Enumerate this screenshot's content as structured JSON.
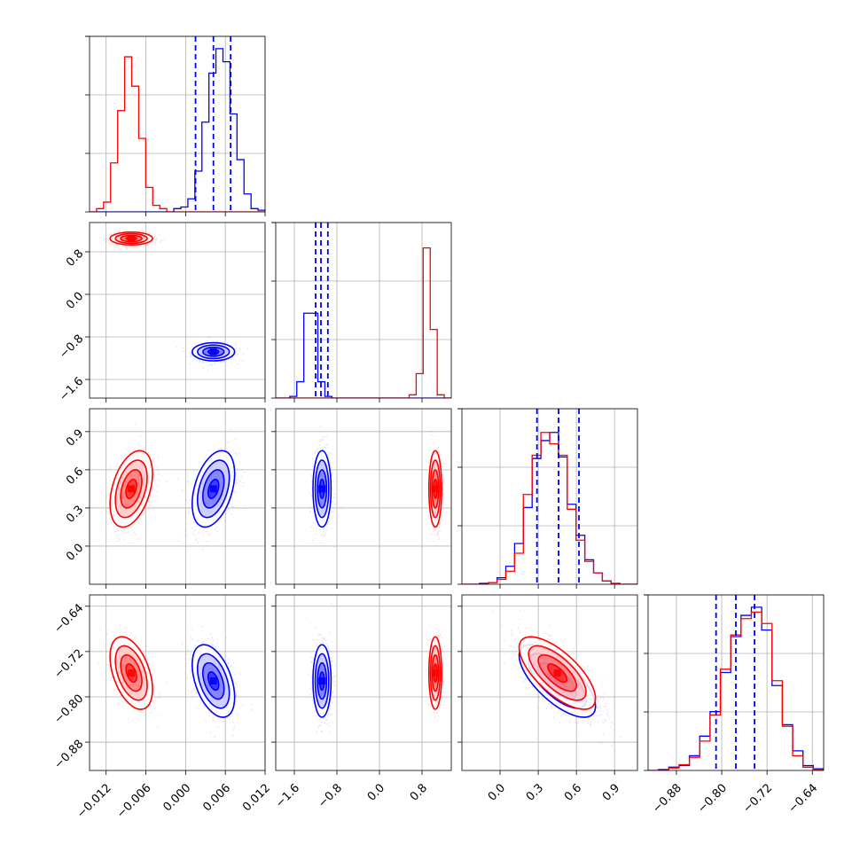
{
  "chart_data": {
    "type": "corner",
    "grid": true,
    "series_colors": {
      "blue": "#0000ff",
      "red": "#ff0000"
    },
    "truth_line_color": "#0000ff",
    "parameters": [
      {
        "index": 0,
        "range": [
          -0.0145,
          0.012
        ],
        "ticks": [
          "-0.012",
          "-0.006",
          "0.000",
          "0.006",
          "0.012"
        ],
        "tick_values": [
          -0.012,
          -0.006,
          0.0,
          0.006,
          0.012
        ],
        "quantiles_blue": [
          0.0015,
          0.0042,
          0.0068
        ]
      },
      {
        "index": 1,
        "range": [
          -1.95,
          1.35
        ],
        "ticks": [
          "-1.6",
          "-0.8",
          "0.0",
          "0.8"
        ],
        "tick_values": [
          -1.6,
          -0.8,
          0.0,
          0.8
        ],
        "quantiles_blue": [
          -1.2,
          -1.1,
          -0.97
        ]
      },
      {
        "index": 2,
        "range": [
          -0.3,
          1.08
        ],
        "ticks": [
          "0.0",
          "0.3",
          "0.6",
          "0.9"
        ],
        "tick_values": [
          0.0,
          0.3,
          0.6,
          0.9
        ],
        "quantiles_blue": [
          0.29,
          0.46,
          0.62
        ]
      },
      {
        "index": 3,
        "range": [
          -0.93,
          -0.62
        ],
        "ticks": [
          "-0.88",
          "-0.80",
          "-0.72",
          "-0.64"
        ],
        "tick_values": [
          -0.88,
          -0.8,
          -0.72,
          -0.64
        ],
        "quantiles_blue": [
          -0.81,
          -0.775,
          -0.742
        ]
      }
    ],
    "series": [
      {
        "color": "#0000ff",
        "means": [
          0.0042,
          -1.08,
          0.45,
          -0.772
        ],
        "stds": [
          0.0016,
          0.085,
          0.15,
          0.032
        ]
      },
      {
        "color": "#ff0000",
        "means": [
          -0.0082,
          1.05,
          0.45,
          -0.758
        ],
        "stds": [
          0.0016,
          0.06,
          0.15,
          0.032
        ]
      }
    ],
    "correlations": {
      "0-1": {
        "blue": 0.0,
        "red": 0.0
      },
      "0-2": {
        "blue": 0.4,
        "red": 0.4
      },
      "0-3": {
        "blue": -0.45,
        "red": -0.45
      },
      "1-2": {
        "blue": 0.0,
        "red": 0.0
      },
      "1-3": {
        "blue": 0.0,
        "red": 0.0
      },
      "2-3": {
        "blue": -0.7,
        "red": -0.7
      }
    },
    "histograms": [
      {
        "param": 0,
        "blue": [
          0,
          0,
          0,
          0,
          0,
          0,
          0,
          0,
          0,
          0,
          0,
          0,
          0.02,
          0.03,
          0.08,
          0.25,
          0.55,
          0.85,
          1.0,
          0.92,
          0.6,
          0.32,
          0.11,
          0.02,
          0.01
        ],
        "red": [
          0.0,
          0.02,
          0.06,
          0.3,
          0.62,
          0.95,
          0.77,
          0.45,
          0.15,
          0.04,
          0.02,
          0.0,
          0,
          0,
          0,
          0,
          0,
          0,
          0,
          0,
          0,
          0,
          0,
          0,
          0
        ]
      },
      {
        "param": 1,
        "blue": [
          0,
          0,
          0.01,
          0.1,
          0.52,
          0.52,
          0.1,
          0.01,
          0,
          0,
          0,
          0,
          0,
          0,
          0,
          0,
          0,
          0,
          0,
          0,
          0,
          0,
          0,
          0,
          0
        ],
        "red": [
          0,
          0,
          0,
          0,
          0,
          0,
          0,
          0,
          0,
          0,
          0,
          0,
          0,
          0,
          0,
          0,
          0,
          0,
          0.0,
          0.02,
          0.15,
          0.92,
          0.42,
          0.02,
          0.0
        ]
      },
      {
        "param": 2,
        "blue": [
          0,
          0,
          0.005,
          0.01,
          0.04,
          0.11,
          0.25,
          0.47,
          0.77,
          0.88,
          0.93,
          0.78,
          0.49,
          0.3,
          0.15,
          0.07,
          0.02,
          0.005,
          0,
          0
        ],
        "red": [
          0,
          0,
          0.0,
          0.01,
          0.03,
          0.08,
          0.19,
          0.55,
          0.79,
          0.93,
          0.86,
          0.79,
          0.46,
          0.27,
          0.14,
          0.07,
          0.02,
          0.005,
          0,
          0
        ]
      },
      {
        "param": 3,
        "blue": [
          0,
          0.005,
          0.02,
          0.03,
          0.09,
          0.21,
          0.36,
          0.6,
          0.82,
          0.95,
          1.0,
          0.86,
          0.52,
          0.28,
          0.12,
          0.03,
          0.01
        ],
        "red": [
          0,
          0.0,
          0.015,
          0.035,
          0.08,
          0.18,
          0.34,
          0.62,
          0.83,
          0.93,
          0.97,
          0.9,
          0.55,
          0.27,
          0.09,
          0.02,
          0.005
        ]
      }
    ]
  }
}
